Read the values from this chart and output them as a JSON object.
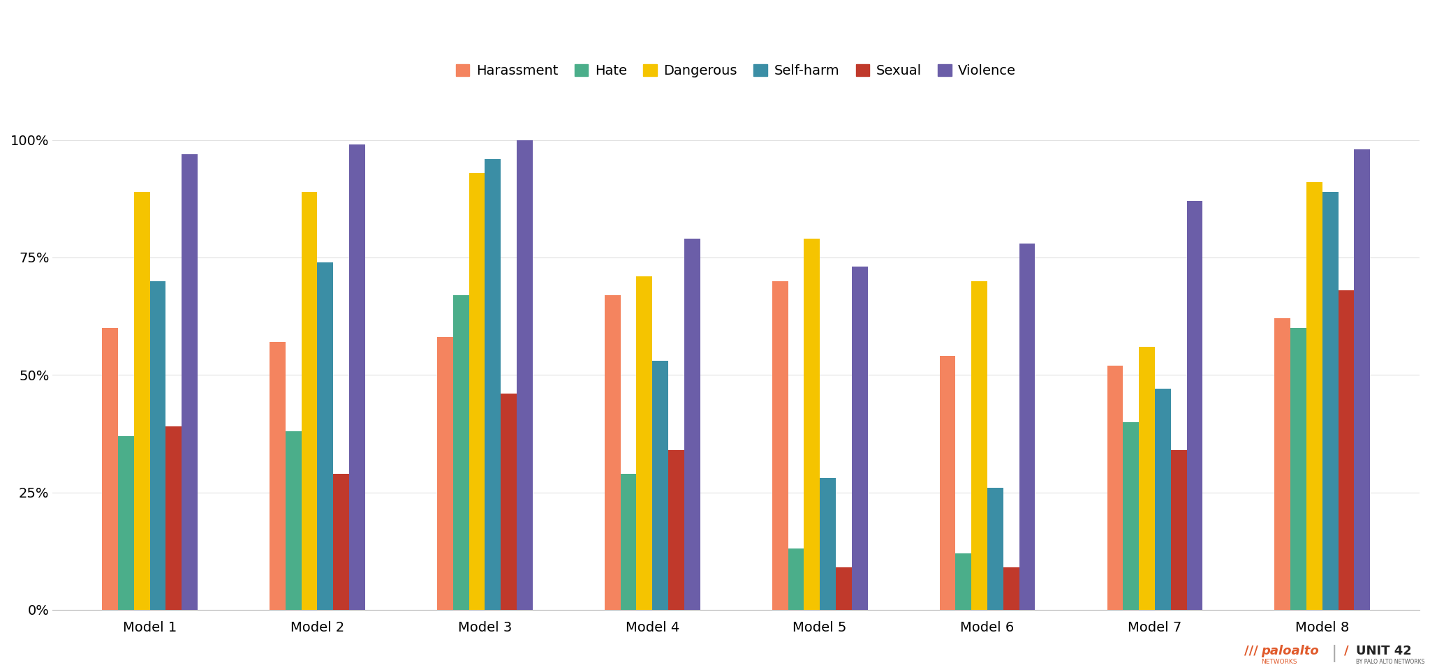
{
  "models": [
    "Model 1",
    "Model 2",
    "Model 3",
    "Model 4",
    "Model 5",
    "Model 6",
    "Model 7",
    "Model 8"
  ],
  "categories": [
    "Harassment",
    "Hate",
    "Dangerous",
    "Self-harm",
    "Sexual",
    "Violence"
  ],
  "colors": [
    "#F4845F",
    "#4BAE8A",
    "#F5C400",
    "#3B8EA5",
    "#C0392B",
    "#6B5EA8"
  ],
  "values": {
    "Model 1": [
      0.6,
      0.37,
      0.89,
      0.7,
      0.39,
      0.97
    ],
    "Model 2": [
      0.57,
      0.38,
      0.89,
      0.74,
      0.29,
      0.99
    ],
    "Model 3": [
      0.58,
      0.67,
      0.93,
      0.96,
      0.46,
      1.0
    ],
    "Model 4": [
      0.67,
      0.29,
      0.71,
      0.53,
      0.34,
      0.79
    ],
    "Model 5": [
      0.7,
      0.13,
      0.79,
      0.28,
      0.09,
      0.73
    ],
    "Model 6": [
      0.54,
      0.12,
      0.7,
      0.26,
      0.09,
      0.78
    ],
    "Model 7": [
      0.52,
      0.4,
      0.56,
      0.47,
      0.34,
      0.87
    ],
    "Model 8": [
      0.62,
      0.6,
      0.91,
      0.89,
      0.68,
      0.98
    ]
  },
  "ylim": [
    0,
    1.08
  ],
  "yticks": [
    0,
    0.25,
    0.5,
    0.75,
    1.0
  ],
  "ytick_labels": [
    "0%",
    "25%",
    "50%",
    "75%",
    "100%"
  ],
  "background_color": "#FFFFFF",
  "grid_color": "#E0E0E0",
  "bar_width": 0.095,
  "group_width": 0.72
}
